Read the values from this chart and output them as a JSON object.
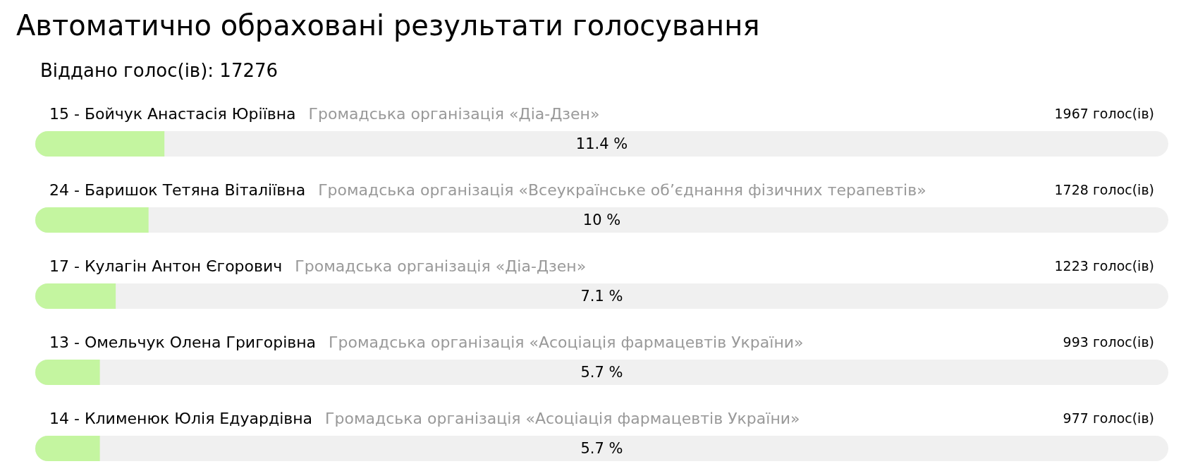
{
  "chart_data": {
    "type": "bar",
    "orientation": "horizontal",
    "title": "Автоматично обраховані результати голосування",
    "subtitle": "Віддано голос(ів): 17276",
    "categories": [
      "15 - Бойчук Анастасія Юріївна",
      "24 - Баришок Тетяна Віталіївна",
      "17 - Кулагін Антон Єгорович",
      "13 - Омельчук Олена Григорівна",
      "14 - Клименюк Юлія Едуардівна"
    ],
    "values": [
      11.4,
      10,
      7.1,
      5.7,
      5.7
    ],
    "color": "#c4f5a0",
    "value_labels": [
      "11.4 %",
      "10 %",
      "7.1 %",
      "5.7 %",
      "5.7 %"
    ],
    "xlim": [
      0,
      100
    ],
    "tick_labels": "y",
    "annotations": [
      "Громадська організація «Діа-Дзен»",
      "1967 голос(ів)",
      "Громадська організація «Всеукраїнське об’єднання фізичних терапевтів»",
      "1728 голос(ів)",
      "Громадська організація «Діа-Дзен»",
      "1223 голос(ів)",
      "Громадська організація «Асоціація фармацевтів України»",
      "993 голос(ів)",
      "Громадська організація «Асоціація фармацевтів України»",
      "977 голос(ів)"
    ]
  }
}
